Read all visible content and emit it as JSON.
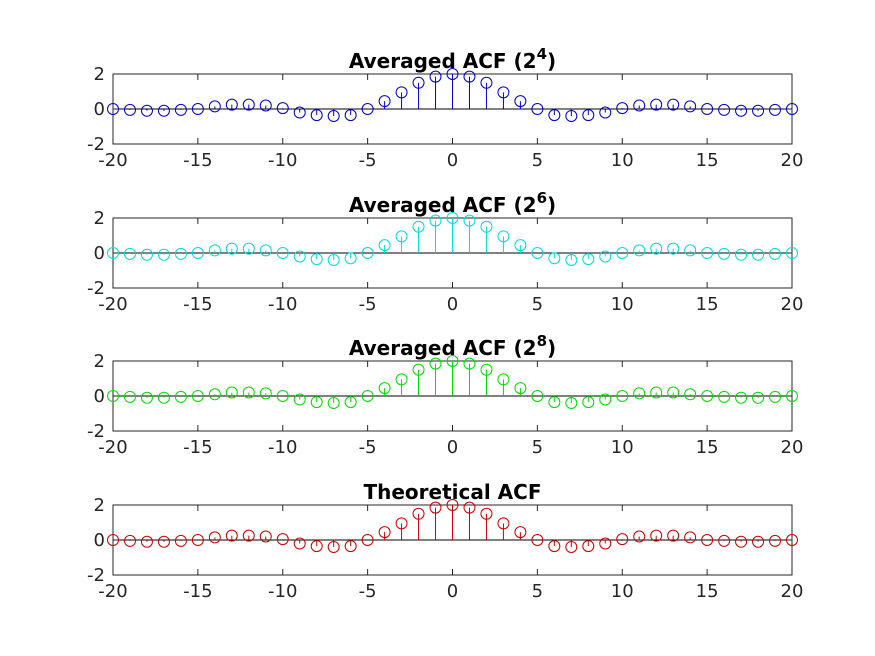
{
  "chart_data": [
    {
      "type": "stem",
      "title": "Averaged ACF (2",
      "title_exponent": "4",
      "title_close": ")",
      "color": "#0000cc",
      "xlim": [
        -20,
        20
      ],
      "ylim": [
        -2,
        2
      ],
      "xticks": [
        -20,
        -15,
        -10,
        -5,
        0,
        5,
        10,
        15,
        20
      ],
      "yticks": [
        -2,
        0,
        2
      ],
      "x": [
        -20,
        -19,
        -18,
        -17,
        -16,
        -15,
        -14,
        -13,
        -12,
        -11,
        -10,
        -9,
        -8,
        -7,
        -6,
        -5,
        -4,
        -3,
        -2,
        -1,
        0,
        1,
        2,
        3,
        4,
        5,
        6,
        7,
        8,
        9,
        10,
        11,
        12,
        13,
        14,
        15,
        16,
        17,
        18,
        19,
        20
      ],
      "y": [
        0,
        -0.05,
        -0.1,
        -0.1,
        -0.05,
        0,
        0.15,
        0.25,
        0.25,
        0.2,
        0.05,
        -0.2,
        -0.35,
        -0.4,
        -0.35,
        0,
        0.45,
        0.95,
        1.5,
        1.85,
        2.0,
        1.85,
        1.5,
        0.95,
        0.45,
        0,
        -0.35,
        -0.4,
        -0.35,
        -0.2,
        0.05,
        0.2,
        0.25,
        0.25,
        0.15,
        0,
        -0.05,
        -0.1,
        -0.1,
        -0.05,
        0
      ]
    },
    {
      "type": "stem",
      "title": "Averaged ACF (2",
      "title_exponent": "6",
      "title_close": ")",
      "color": "#00dddd",
      "xlim": [
        -20,
        20
      ],
      "ylim": [
        -2,
        2
      ],
      "xticks": [
        -20,
        -15,
        -10,
        -5,
        0,
        5,
        10,
        15,
        20
      ],
      "yticks": [
        -2,
        0,
        2
      ],
      "x": [
        -20,
        -19,
        -18,
        -17,
        -16,
        -15,
        -14,
        -13,
        -12,
        -11,
        -10,
        -9,
        -8,
        -7,
        -6,
        -5,
        -4,
        -3,
        -2,
        -1,
        0,
        1,
        2,
        3,
        4,
        5,
        6,
        7,
        8,
        9,
        10,
        11,
        12,
        13,
        14,
        15,
        16,
        17,
        18,
        19,
        20
      ],
      "y": [
        0,
        -0.05,
        -0.1,
        -0.1,
        -0.05,
        0,
        0.15,
        0.25,
        0.25,
        0.15,
        0,
        -0.2,
        -0.35,
        -0.4,
        -0.3,
        0,
        0.45,
        0.95,
        1.5,
        1.85,
        2.0,
        1.85,
        1.5,
        0.95,
        0.45,
        0,
        -0.3,
        -0.4,
        -0.35,
        -0.2,
        0,
        0.15,
        0.25,
        0.25,
        0.15,
        0,
        -0.05,
        -0.1,
        -0.1,
        -0.05,
        0
      ]
    },
    {
      "type": "stem",
      "title": "Averaged ACF (2",
      "title_exponent": "8",
      "title_close": ")",
      "color": "#00dd00",
      "xlim": [
        -20,
        20
      ],
      "ylim": [
        -2,
        2
      ],
      "xticks": [
        -20,
        -15,
        -10,
        -5,
        0,
        5,
        10,
        15,
        20
      ],
      "yticks": [
        -2,
        0,
        2
      ],
      "x": [
        -20,
        -19,
        -18,
        -17,
        -16,
        -15,
        -14,
        -13,
        -12,
        -11,
        -10,
        -9,
        -8,
        -7,
        -6,
        -5,
        -4,
        -3,
        -2,
        -1,
        0,
        1,
        2,
        3,
        4,
        5,
        6,
        7,
        8,
        9,
        10,
        11,
        12,
        13,
        14,
        15,
        16,
        17,
        18,
        19,
        20
      ],
      "y": [
        0,
        -0.05,
        -0.1,
        -0.1,
        -0.05,
        0,
        0.1,
        0.2,
        0.2,
        0.15,
        0,
        -0.2,
        -0.35,
        -0.4,
        -0.35,
        0,
        0.45,
        0.95,
        1.5,
        1.85,
        2.0,
        1.85,
        1.5,
        0.95,
        0.45,
        0,
        -0.35,
        -0.4,
        -0.35,
        -0.2,
        0,
        0.15,
        0.2,
        0.2,
        0.1,
        0,
        -0.05,
        -0.1,
        -0.1,
        -0.05,
        0
      ]
    },
    {
      "type": "stem",
      "title": "Theoretical ACF",
      "title_exponent": "",
      "title_close": "",
      "color": "#cc0000",
      "xlim": [
        -20,
        20
      ],
      "ylim": [
        -2,
        2
      ],
      "xticks": [
        -20,
        -15,
        -10,
        -5,
        0,
        5,
        10,
        15,
        20
      ],
      "yticks": [
        -2,
        0,
        2
      ],
      "x": [
        -20,
        -19,
        -18,
        -17,
        -16,
        -15,
        -14,
        -13,
        -12,
        -11,
        -10,
        -9,
        -8,
        -7,
        -6,
        -5,
        -4,
        -3,
        -2,
        -1,
        0,
        1,
        2,
        3,
        4,
        5,
        6,
        7,
        8,
        9,
        10,
        11,
        12,
        13,
        14,
        15,
        16,
        17,
        18,
        19,
        20
      ],
      "y": [
        0,
        -0.05,
        -0.1,
        -0.1,
        -0.05,
        0,
        0.15,
        0.25,
        0.25,
        0.2,
        0.05,
        -0.2,
        -0.35,
        -0.4,
        -0.35,
        0,
        0.45,
        0.95,
        1.5,
        1.85,
        2.0,
        1.85,
        1.5,
        0.95,
        0.45,
        0,
        -0.35,
        -0.4,
        -0.35,
        -0.2,
        0.05,
        0.2,
        0.25,
        0.25,
        0.15,
        0,
        -0.05,
        -0.1,
        -0.1,
        -0.05,
        0
      ]
    }
  ]
}
